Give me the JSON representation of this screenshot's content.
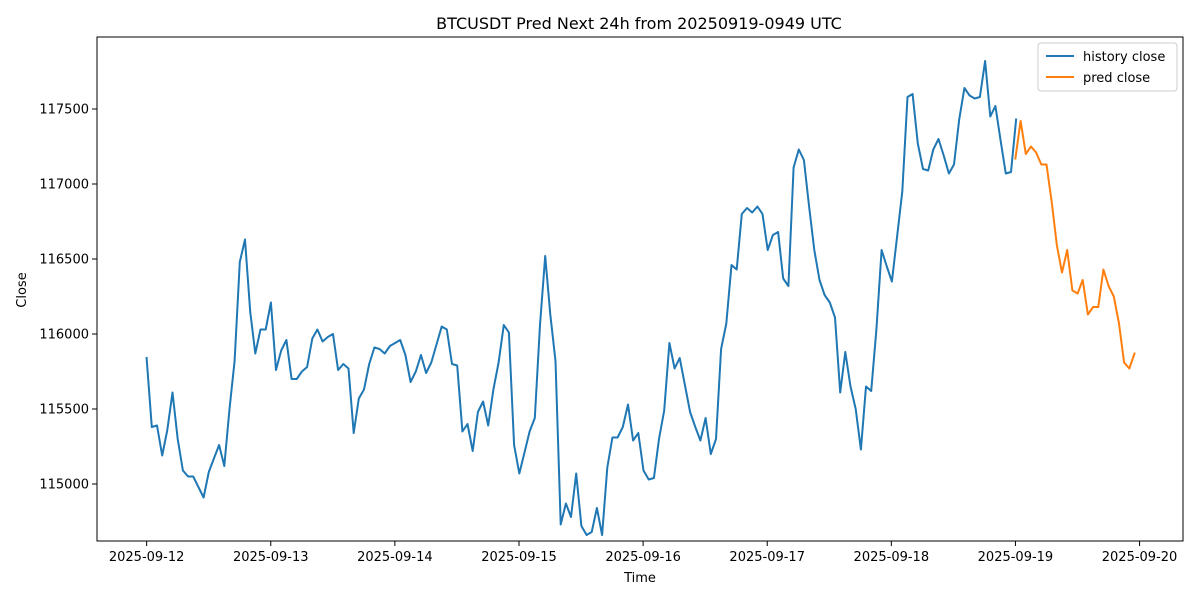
{
  "chart_data": {
    "type": "line",
    "title": "BTCUSDT Pred Next 24h from 20250919-0949 UTC",
    "xlabel": "Time",
    "ylabel": "Close",
    "xlim": [
      -0.4,
      8.35
    ],
    "ylim": [
      114620,
      117980
    ],
    "grid": false,
    "legend": "top-right",
    "x_ticks": [
      {
        "pos": 0,
        "label": "2025-09-12"
      },
      {
        "pos": 1,
        "label": "2025-09-13"
      },
      {
        "pos": 2,
        "label": "2025-09-14"
      },
      {
        "pos": 3,
        "label": "2025-09-15"
      },
      {
        "pos": 4,
        "label": "2025-09-16"
      },
      {
        "pos": 5,
        "label": "2025-09-17"
      },
      {
        "pos": 6,
        "label": "2025-09-18"
      },
      {
        "pos": 7,
        "label": "2025-09-19"
      },
      {
        "pos": 8,
        "label": "2025-09-20"
      }
    ],
    "y_ticks": [
      115000,
      115500,
      116000,
      116500,
      117000,
      117500
    ],
    "y_tick_labels": [
      "115000",
      "115500",
      "116000",
      "116500",
      "117000",
      "117500"
    ],
    "series": [
      {
        "name": "history close",
        "color": "#1f77b4",
        "x_start": 0,
        "x_step": 0.0417,
        "values": [
          115840,
          115380,
          115390,
          115190,
          115360,
          115610,
          115300,
          115090,
          115050,
          115050,
          114980,
          114910,
          115080,
          115170,
          115260,
          115120,
          115500,
          115820,
          116480,
          116630,
          116150,
          115870,
          116030,
          116030,
          116210,
          115760,
          115890,
          115960,
          115700,
          115700,
          115750,
          115780,
          115970,
          116030,
          115950,
          115980,
          116000,
          115760,
          115800,
          115770,
          115340,
          115570,
          115630,
          115800,
          115910,
          115900,
          115870,
          115920,
          115940,
          115960,
          115860,
          115680,
          115750,
          115860,
          115740,
          115810,
          115930,
          116050,
          116030,
          115800,
          115790,
          115350,
          115400,
          115220,
          115480,
          115550,
          115390,
          115630,
          115810,
          116060,
          116010,
          115260,
          115070,
          115210,
          115350,
          115440,
          116060,
          116520,
          116130,
          115820,
          114730,
          114870,
          114780,
          115070,
          114720,
          114660,
          114680,
          114840,
          114660,
          115110,
          115310,
          115310,
          115380,
          115530,
          115290,
          115340,
          115090,
          115030,
          115040,
          115300,
          115490,
          115940,
          115770,
          115840,
          115660,
          115480,
          115380,
          115290,
          115440,
          115200,
          115300,
          115900,
          116070,
          116460,
          116430,
          116800,
          116840,
          116810,
          116850,
          116800,
          116560,
          116660,
          116680,
          116370,
          116320,
          117110,
          117230,
          117160,
          116850,
          116560,
          116360,
          116260,
          116210,
          116110,
          115610,
          115880,
          115650,
          115500,
          115230,
          115650,
          115620,
          116030,
          116560,
          116450,
          116350,
          116650,
          116950,
          117580,
          117600,
          117270,
          117100,
          117090,
          117230,
          117300,
          117190,
          117070,
          117130,
          117430,
          117640,
          117590,
          117570,
          117580,
          117820,
          117450,
          117520,
          117290,
          117070,
          117080,
          117430
        ]
      },
      {
        "name": "pred close",
        "color": "#ff7f0e",
        "x_start": 7.0,
        "x_step": 0.0417,
        "values": [
          117170,
          117420,
          117200,
          117250,
          117210,
          117130,
          117130,
          116880,
          116590,
          116410,
          116560,
          116290,
          116270,
          116360,
          116130,
          116180,
          116180,
          116430,
          116320,
          116250,
          116070,
          115810,
          115770,
          115870
        ]
      }
    ]
  }
}
